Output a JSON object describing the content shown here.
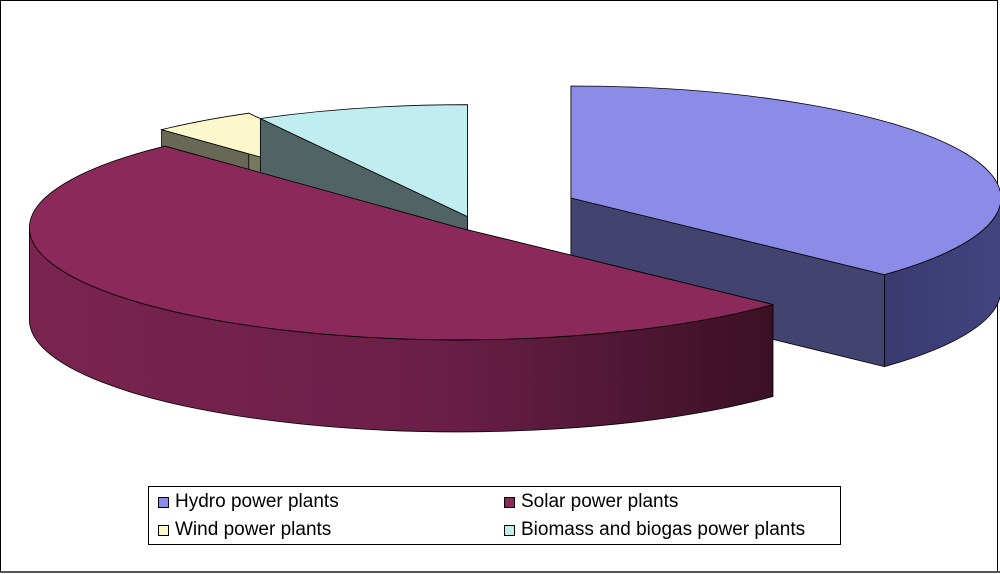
{
  "chart_data": {
    "type": "pie",
    "three_d": true,
    "exploded": true,
    "legend_position": "bottom",
    "slices": [
      {
        "name": "Hydro power plants",
        "value": 37,
        "color": "#8b8be8"
      },
      {
        "name": "Solar power plants",
        "value": 51,
        "color": "#8b2a5a"
      },
      {
        "name": "Wind power plants",
        "value": 4,
        "color": "#fbf8cc"
      },
      {
        "name": "Biomass and biogas power plants",
        "value": 8,
        "color": "#c0eef0"
      }
    ],
    "legend": [
      {
        "label": "Hydro power plants",
        "color": "#8b8be8"
      },
      {
        "label": "Solar power plants",
        "color": "#8b2a5a"
      },
      {
        "label": "Wind power plants",
        "color": "#fbf8cc"
      },
      {
        "label": "Biomass and biogas power plants",
        "color": "#c0eef0"
      }
    ]
  }
}
